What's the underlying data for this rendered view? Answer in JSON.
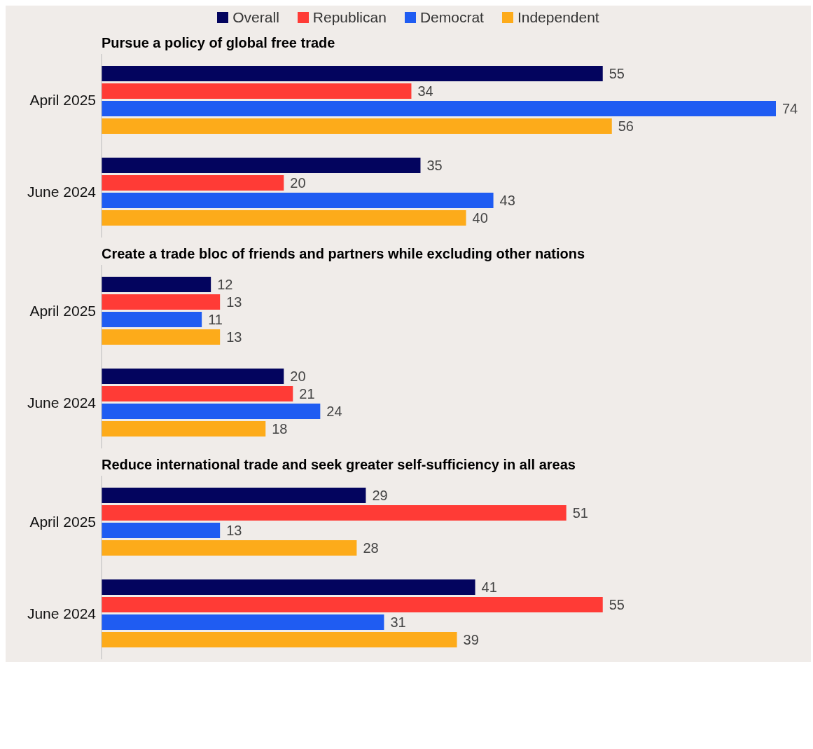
{
  "chart_data": [
    {
      "type": "bar",
      "orientation": "horizontal",
      "title": "Pursue a policy of global free trade",
      "categories": [
        "April 2025",
        "June 2024"
      ],
      "series": [
        {
          "name": "Overall",
          "color": "#03045e",
          "values": [
            55,
            35
          ]
        },
        {
          "name": "Republican",
          "color": "#ff3b36",
          "values": [
            34,
            20
          ]
        },
        {
          "name": "Democrat",
          "color": "#1f5cf2",
          "values": [
            74,
            43
          ]
        },
        {
          "name": "Independent",
          "color": "#fdab1a",
          "values": [
            56,
            40
          ]
        }
      ],
      "data_labels": true,
      "legend": "top",
      "tick_labels": "y"
    },
    {
      "type": "bar",
      "orientation": "horizontal",
      "title": "Create a trade bloc of friends and partners while excluding other nations",
      "categories": [
        "April 2025",
        "June 2024"
      ],
      "series": [
        {
          "color": "#03045e",
          "values": [
            12,
            20
          ]
        },
        {
          "color": "#ff3b36",
          "values": [
            13,
            21
          ]
        },
        {
          "color": "#1f5cf2",
          "values": [
            11,
            24
          ]
        },
        {
          "color": "#fdab1a",
          "values": [
            13,
            18
          ]
        }
      ],
      "data_labels": true,
      "tick_labels": "y"
    },
    {
      "type": "bar",
      "orientation": "horizontal",
      "title": "Reduce international trade and seek greater self-sufficiency in all areas",
      "categories": [
        "April 2025",
        "June 2024"
      ],
      "series": [
        {
          "color": "#03045e",
          "values": [
            29,
            41
          ]
        },
        {
          "color": "#ff3b36",
          "values": [
            51,
            55
          ]
        },
        {
          "color": "#1f5cf2",
          "values": [
            13,
            31
          ]
        },
        {
          "color": "#fdab1a",
          "values": [
            28,
            39
          ]
        }
      ],
      "data_labels": true,
      "tick_labels": "y"
    }
  ]
}
